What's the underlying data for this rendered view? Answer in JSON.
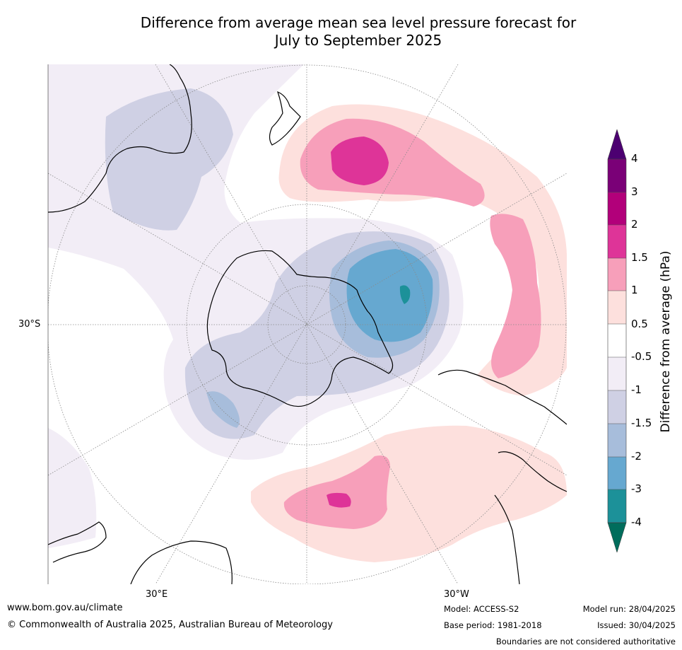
{
  "title": {
    "line1": "Difference from average mean sea level pressure forecast for",
    "line2": "July to September 2025"
  },
  "map": {
    "projection": "south polar stereographic",
    "lat_label": "30°S",
    "lon_labels": {
      "east": "30°E",
      "west": "30°W"
    },
    "colors": {
      "land": "#000000",
      "graticule": "#8a8a8a"
    }
  },
  "colorbar": {
    "label": "Difference from average (hPa)",
    "ticks": [
      "4",
      "3",
      "2",
      "1.5",
      "1",
      "0.5",
      "-0.5",
      "-1",
      "-1.5",
      "-2",
      "-3",
      "-4"
    ],
    "bins": [
      {
        "range": "> 4",
        "color": "#4c0071"
      },
      {
        "range": "3 to 4",
        "color": "#7a0077"
      },
      {
        "range": "2 to 3",
        "color": "#b2007a"
      },
      {
        "range": "1.5 to 2",
        "color": "#de3498"
      },
      {
        "range": "1 to 1.5",
        "color": "#f79fba"
      },
      {
        "range": "0.5 to 1",
        "color": "#fde0dd"
      },
      {
        "range": "-0.5 to 0.5",
        "color": "#ffffff"
      },
      {
        "range": "-1 to -0.5",
        "color": "#f2edf6"
      },
      {
        "range": "-1.5 to -1",
        "color": "#cfd0e4"
      },
      {
        "range": "-2 to -1.5",
        "color": "#a7bddb"
      },
      {
        "range": "-3 to -2",
        "color": "#66a8d0"
      },
      {
        "range": "-4 to -3",
        "color": "#1c9199"
      },
      {
        "range": "< -4",
        "color": "#006d5c"
      }
    ]
  },
  "footer": {
    "website": "www.bom.gov.au/climate",
    "copyright": "© Commonwealth of Australia 2025, Australian Bureau of Meteorology",
    "model": "Model: ACCESS-S2",
    "base_period": "Base period: 1981-2018",
    "model_run": "Model run: 28/04/2025",
    "issued": "Issued: 30/04/2025",
    "disclaimer": "Boundaries are not considered authoritative"
  }
}
